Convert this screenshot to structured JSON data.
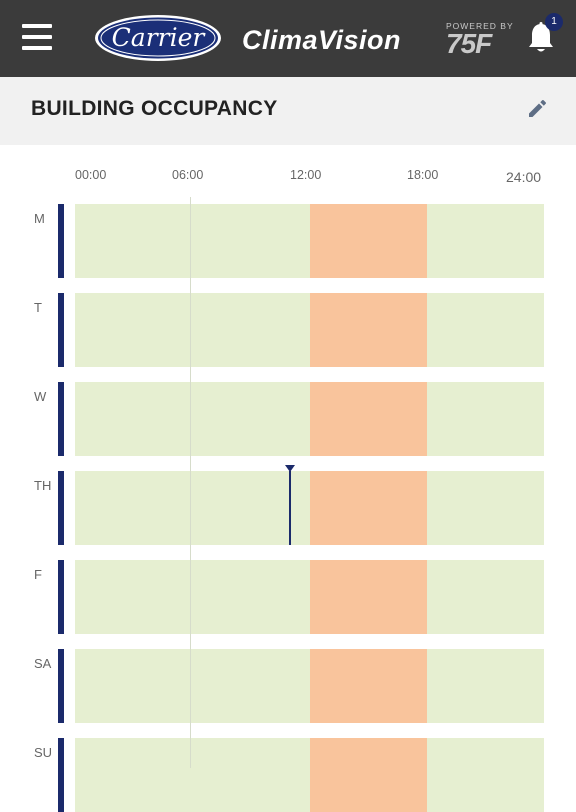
{
  "header": {
    "logo_text": "Carrier",
    "app_name": "ClimaVision",
    "powered_by": "POWERED BY",
    "partner_logo": "75F",
    "notification_count": "1",
    "icons": {
      "menu": "hamburger-icon",
      "bell": "bell-icon",
      "edit": "pencil-icon"
    }
  },
  "page": {
    "title": "BUILDING OCCUPANCY"
  },
  "timeline": {
    "ticks": [
      "00:00",
      "06:00",
      "12:00",
      "18:00",
      "24:00"
    ],
    "range_hours": [
      0,
      24
    ],
    "current_time_hour": 11
  },
  "schedule": {
    "days": [
      {
        "label": "M",
        "occupied": [
          12,
          18
        ]
      },
      {
        "label": "T",
        "occupied": [
          12,
          18
        ]
      },
      {
        "label": "W",
        "occupied": [
          12,
          18
        ]
      },
      {
        "label": "TH",
        "occupied": [
          12,
          18
        ],
        "current": true
      },
      {
        "label": "F",
        "occupied": [
          12,
          18
        ]
      },
      {
        "label": "SA",
        "occupied": [
          12,
          18
        ]
      },
      {
        "label": "SU",
        "occupied": [
          12,
          18
        ]
      }
    ]
  },
  "colors": {
    "header_bg": "#3b3b3b",
    "unoccupied": "#e6efd1",
    "occupied": "#f9c49c",
    "accent": "#1b2a6b"
  }
}
